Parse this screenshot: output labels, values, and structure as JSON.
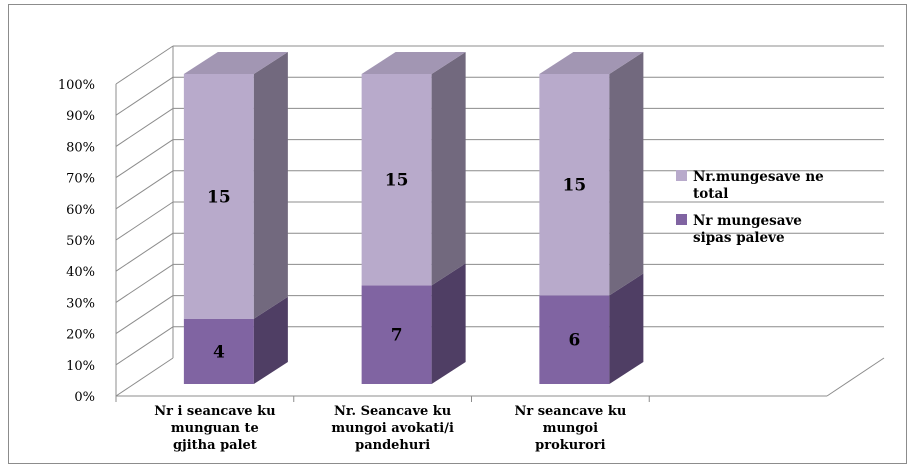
{
  "chart_data": {
    "type": "bar",
    "stacked": true,
    "percent_stacked": true,
    "three_d": true,
    "categories": [
      [
        "Nr i seancave ku",
        "munguan te",
        "gjitha palet"
      ],
      [
        "Nr. Seancave ku",
        "mungoi avokati/i",
        "pandehuri"
      ],
      [
        "Nr seancave ku",
        "mungoi",
        "prokurori"
      ]
    ],
    "series": [
      {
        "name": [
          "Nr mungesave",
          "sipas paleve"
        ],
        "values": [
          4,
          7,
          6
        ],
        "color": "#8064a2"
      },
      {
        "name": [
          "Nr.mungesave ne",
          "total"
        ],
        "values": [
          15,
          15,
          15
        ],
        "color": "#b8aacb"
      }
    ],
    "y_ticks": [
      "0%",
      "10%",
      "20%",
      "30%",
      "40%",
      "50%",
      "60%",
      "70%",
      "80%",
      "90%",
      "100%"
    ],
    "ylim": [
      0,
      100
    ],
    "grid": true,
    "legend_position": "right",
    "title": "",
    "xlabel": "",
    "ylabel": ""
  }
}
